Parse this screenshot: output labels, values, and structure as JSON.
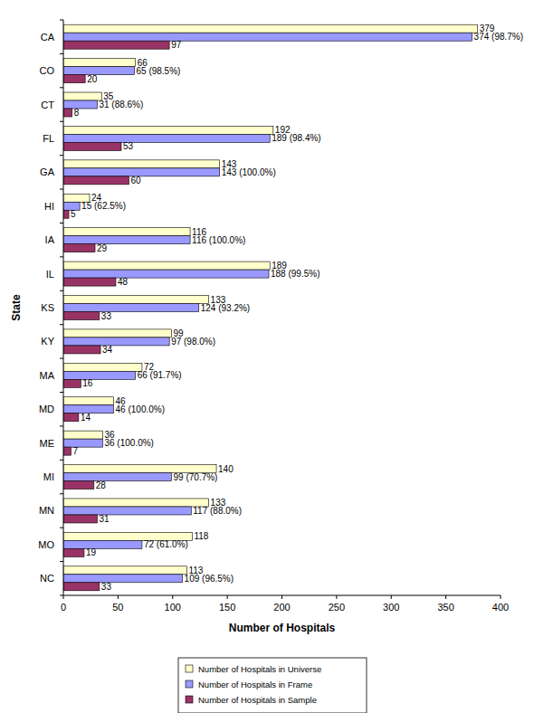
{
  "chart_data": {
    "type": "bar",
    "orientation": "horizontal",
    "x_label": "Number of Hospitals",
    "y_label": "State",
    "categories": [
      "CA",
      "CO",
      "CT",
      "FL",
      "GA",
      "HI",
      "IA",
      "IL",
      "KS",
      "KY",
      "MA",
      "MD",
      "ME",
      "MI",
      "MN",
      "MO",
      "NC"
    ],
    "series": [
      {
        "name": "Number of Hospitals in Universe",
        "color": "#ffffcc",
        "values": [
          379,
          66,
          35,
          192,
          143,
          24,
          116,
          189,
          133,
          99,
          72,
          46,
          36,
          140,
          133,
          118,
          113
        ]
      },
      {
        "name": "Number of Hospitals in Frame",
        "color": "#9999ff",
        "values": [
          374,
          65,
          31,
          189,
          143,
          15,
          116,
          188,
          124,
          97,
          66,
          46,
          36,
          99,
          117,
          72,
          109
        ],
        "value_labels": [
          "374 (98.7%)",
          "65 (98.5%)",
          "31 (88.6%)",
          "189 (98.4%)",
          "143 (100.0%)",
          "15 (62.5%)",
          "116 (100.0%)",
          "188 (99.5%)",
          "124 (93.2%)",
          "97 (98.0%)",
          "66 (91.7%)",
          "46 (100.0%)",
          "36 (100.0%)",
          "99 (70.7%)",
          "117 (88.0%)",
          "72 (61.0%)",
          "109 (96.5%)"
        ]
      },
      {
        "name": "Number of Hospitals in Sample",
        "color": "#993366",
        "values": [
          97,
          20,
          8,
          53,
          60,
          5,
          29,
          48,
          33,
          34,
          16,
          14,
          7,
          28,
          31,
          19,
          33
        ]
      }
    ],
    "xlim": [
      0,
      400
    ],
    "xticks": [
      0,
      50,
      100,
      150,
      200,
      250,
      300,
      350,
      400
    ],
    "grid": false,
    "legend": "bottom",
    "data_labels": true
  }
}
